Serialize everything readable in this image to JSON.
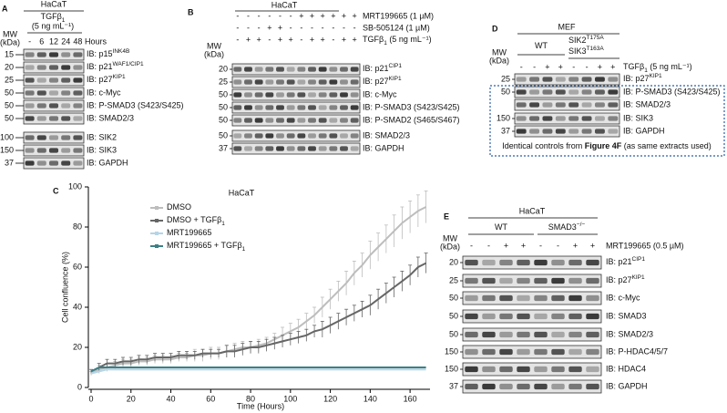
{
  "panel_a": {
    "letter": "A",
    "cell_line": "HaCaT",
    "treatment": {
      "text": "TGFβ",
      "sub": "1"
    },
    "dose": "(5 ng mL⁻¹)",
    "mw_header": [
      "MW",
      "(kDa)"
    ],
    "lanes": [
      "-",
      "6",
      "12",
      "24",
      "48"
    ],
    "lanes_unit": "Hours",
    "rows": [
      {
        "mw": "15",
        "label": {
          "text": "IB: p15",
          "sup": "INK4B"
        }
      },
      {
        "mw": "20",
        "label": {
          "text": "IB: p21",
          "sup": "WAF1/CIP1"
        }
      },
      {
        "mw": "25",
        "label": {
          "text": "IB: p27",
          "sup": "KIP1"
        }
      },
      {
        "mw": "50",
        "label": "IB: c-Myc"
      },
      {
        "mw": "50",
        "label": "IB: P-SMAD3 (S423/S425)"
      },
      {
        "mw": "50",
        "label": "IB: SMAD2/3"
      },
      {
        "mw": "100",
        "label": "IB: SIK2"
      },
      {
        "mw": "150",
        "label": "IB: SIK3"
      },
      {
        "mw": "37",
        "label": "IB: GAPDH"
      }
    ]
  },
  "panel_b": {
    "letter": "B",
    "cell_line": "HaCaT",
    "mw_header": [
      "MW",
      "(kDa)"
    ],
    "treatments": [
      {
        "label": "MRT199665 (1 µM)",
        "signs": [
          "-",
          "-",
          "-",
          "-",
          "-",
          "-",
          "+",
          "+",
          "+",
          "+",
          "+",
          "+"
        ]
      },
      {
        "label": "SB-505124 (1 µM)",
        "signs": [
          "-",
          "-",
          "-",
          "+",
          "+",
          "-",
          "-",
          "-",
          "-",
          "-",
          "-",
          "-"
        ]
      },
      {
        "label": {
          "text": "TGFβ",
          "sub": "1",
          "after": " (5 ng mL⁻¹)"
        },
        "signs": [
          "-",
          "+",
          "+",
          "-",
          "+",
          "+",
          "-",
          "+",
          "+",
          "-",
          "+",
          "+"
        ]
      }
    ],
    "rows": [
      {
        "mw": "20",
        "label": {
          "text": "IB: p21",
          "sup": "CIP1"
        }
      },
      {
        "mw": "25",
        "label": {
          "text": "IB: p27",
          "sup": "KIP1"
        }
      },
      {
        "mw": "50",
        "label": "IB: c-Myc"
      },
      {
        "mw": "50",
        "label": "IB: P-SMAD3 (S423/S425)"
      },
      {
        "mw": "50",
        "label": "IB: P-SMAD2 (S465/S467)"
      },
      {
        "mw": "50",
        "label": "IB: SMAD2/3"
      },
      {
        "mw": "37",
        "label": "IB: GAPDH"
      }
    ]
  },
  "panel_d": {
    "letter": "D",
    "cell_line": "MEF",
    "mw_header": [
      "MW",
      "(kDa)"
    ],
    "genotypes": [
      {
        "text": "WT"
      },
      {
        "text": "SIK2",
        "sup": "T175A"
      },
      {
        "text": "SIK3",
        "sup": "T163A"
      }
    ],
    "treatment": {
      "label": {
        "text": "TGFβ",
        "sub": "1",
        "after": " (5 ng mL⁻¹)"
      },
      "signs": [
        "-",
        "-",
        "+",
        "+",
        "-",
        "-",
        "+",
        "+"
      ]
    },
    "rows": [
      {
        "mw": "25",
        "label": {
          "text": "IB: p27",
          "sup": "KIP1"
        }
      },
      {
        "mw": "50",
        "label": "IB: P-SMAD3 (S423/S425)"
      },
      {
        "mw": "",
        "label": "IB: SMAD2/3"
      },
      {
        "mw": "150",
        "label": "IB: SIK3"
      },
      {
        "mw": "37",
        "label": "IB: GAPDH"
      }
    ],
    "caption": {
      "text": "Identical controls from ",
      "bold": "Figure 4F",
      "after": " (as same extracts used)"
    }
  },
  "panel_e": {
    "letter": "E",
    "cell_line": "HaCaT",
    "mw_header": [
      "MW",
      "(kDa)"
    ],
    "genotypes": [
      {
        "text": "WT"
      },
      {
        "text": "SMAD3",
        "sup": "−/−"
      }
    ],
    "treatment": {
      "label": "MRT199665 (0.5 µM)",
      "signs": [
        "-",
        "-",
        "+",
        "+",
        "-",
        "-",
        "+",
        "+"
      ]
    },
    "rows": [
      {
        "mw": "20",
        "label": {
          "text": "IB: p21",
          "sup": "CIP1"
        }
      },
      {
        "mw": "25",
        "label": {
          "text": "IB: p27",
          "sup": "KIP1"
        }
      },
      {
        "mw": "50",
        "label": "IB: c-Myc"
      },
      {
        "mw": "50",
        "label": "IB: SMAD3"
      },
      {
        "mw": "50",
        "label": "IB: SMAD2/3"
      },
      {
        "mw": "150",
        "label": "IB: P-HDAC4/5/7"
      },
      {
        "mw": "150",
        "label": "IB: HDAC4"
      },
      {
        "mw": "37",
        "label": "IB: GAPDH"
      }
    ]
  },
  "chart_data": {
    "type": "line",
    "panel_label": "C",
    "title": "HaCaT",
    "x_label": "Time (Hours)",
    "y_label": "Cell confluence (%)",
    "xlim": [
      0,
      170
    ],
    "ylim": [
      0,
      100
    ],
    "xticks": [
      0,
      20,
      40,
      60,
      80,
      100,
      120,
      140,
      160
    ],
    "yticks": [
      0,
      20,
      40,
      60,
      80,
      100
    ],
    "legend": "upper left",
    "x": [
      0,
      4,
      8,
      12,
      16,
      20,
      24,
      28,
      32,
      36,
      40,
      44,
      48,
      52,
      56,
      60,
      64,
      68,
      72,
      76,
      80,
      84,
      88,
      92,
      96,
      100,
      104,
      108,
      112,
      116,
      120,
      124,
      128,
      132,
      136,
      140,
      144,
      148,
      152,
      156,
      160,
      164,
      168
    ],
    "series": [
      {
        "name": "DMSO",
        "color": "#bdbdbd",
        "values": [
          7,
          9,
          10,
          11,
          12,
          12,
          13,
          13,
          14,
          14,
          14,
          15,
          15,
          16,
          16,
          17,
          17,
          18,
          19,
          20,
          20,
          21,
          22,
          24,
          26,
          28,
          30,
          33,
          36,
          40,
          44,
          48,
          52,
          57,
          61,
          66,
          70,
          74,
          78,
          82,
          85,
          88,
          90
        ],
        "errors": [
          1,
          2,
          2,
          2,
          2,
          2,
          2,
          2,
          2,
          2,
          2,
          2,
          2,
          3,
          3,
          3,
          3,
          3,
          3,
          3,
          3,
          3,
          3,
          3,
          4,
          4,
          4,
          4,
          4,
          5,
          5,
          5,
          6,
          6,
          6,
          7,
          7,
          7,
          8,
          8,
          8,
          8,
          8
        ]
      },
      {
        "name": "DMSO + TGFβ",
        "name_sub": "1",
        "color": "#666666",
        "values": [
          8,
          10,
          12,
          12,
          13,
          13,
          14,
          14,
          15,
          15,
          15,
          16,
          16,
          16,
          17,
          17,
          17,
          18,
          18,
          19,
          20,
          20,
          21,
          22,
          23,
          24,
          25,
          26,
          28,
          29,
          31,
          33,
          35,
          37,
          39,
          41,
          44,
          47,
          50,
          53,
          56,
          60,
          62
        ],
        "errors": [
          1,
          2,
          2,
          2,
          2,
          2,
          2,
          2,
          2,
          2,
          2,
          2,
          2,
          2,
          2,
          2,
          2,
          3,
          3,
          3,
          3,
          3,
          3,
          3,
          3,
          3,
          3,
          3,
          3,
          4,
          4,
          4,
          4,
          4,
          4,
          5,
          5,
          5,
          5,
          5,
          5,
          5,
          5
        ]
      },
      {
        "name": "MRT199665",
        "color": "#b5d5e6",
        "values": [
          7,
          8,
          9,
          9,
          9,
          9,
          9,
          9,
          9,
          9,
          9,
          9,
          9,
          9,
          9,
          9,
          9,
          9,
          9,
          9,
          9,
          9,
          9,
          9,
          9,
          9,
          9,
          9,
          9,
          9,
          9,
          9,
          9,
          9,
          9,
          9,
          9,
          9,
          9,
          9,
          9,
          9,
          9
        ]
      },
      {
        "name": "MRT199665 + TGFβ",
        "name_sub": "1",
        "color": "#3d7f86",
        "values": [
          8,
          10,
          10,
          10,
          10,
          10,
          10,
          10,
          10,
          10,
          10,
          10,
          10,
          10,
          10,
          10,
          10,
          10,
          10,
          10,
          10,
          10,
          10,
          10,
          10,
          10,
          10,
          10,
          10,
          10,
          10,
          10,
          10,
          10,
          10,
          10,
          10,
          10,
          10,
          10,
          10,
          10,
          10
        ]
      }
    ]
  }
}
